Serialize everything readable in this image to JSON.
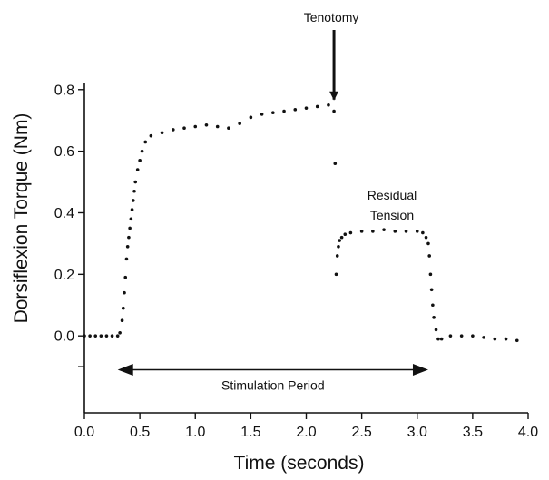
{
  "chart_data": {
    "type": "scatter",
    "title": "",
    "xlabel": "Time (seconds)",
    "ylabel": "Dorsiflexion Torque (Nm)",
    "xlim": [
      0,
      4.0
    ],
    "ylim": [
      -0.25,
      0.82
    ],
    "xticks": [
      "0.0",
      "0.5",
      "1.0",
      "1.5",
      "2.0",
      "2.5",
      "3.0",
      "3.5",
      "4.0"
    ],
    "yticks": [
      "0.0",
      "0.2",
      "0.4",
      "0.6",
      "0.8"
    ],
    "grid": false,
    "legend": "none",
    "series": [
      {
        "points": [
          [
            0.0,
            0.0
          ],
          [
            0.05,
            0.0
          ],
          [
            0.1,
            0.0
          ],
          [
            0.15,
            0.0
          ],
          [
            0.2,
            0.0
          ],
          [
            0.25,
            0.0
          ],
          [
            0.3,
            0.0
          ],
          [
            0.32,
            0.01
          ],
          [
            0.34,
            0.05
          ],
          [
            0.35,
            0.09
          ],
          [
            0.36,
            0.14
          ],
          [
            0.37,
            0.19
          ],
          [
            0.38,
            0.25
          ],
          [
            0.39,
            0.29
          ],
          [
            0.4,
            0.32
          ],
          [
            0.41,
            0.35
          ],
          [
            0.42,
            0.38
          ],
          [
            0.43,
            0.41
          ],
          [
            0.44,
            0.44
          ],
          [
            0.45,
            0.47
          ],
          [
            0.46,
            0.5
          ],
          [
            0.48,
            0.54
          ],
          [
            0.5,
            0.57
          ],
          [
            0.52,
            0.6
          ],
          [
            0.55,
            0.63
          ],
          [
            0.6,
            0.65
          ],
          [
            0.7,
            0.66
          ],
          [
            0.8,
            0.67
          ],
          [
            0.9,
            0.675
          ],
          [
            1.0,
            0.68
          ],
          [
            1.1,
            0.685
          ],
          [
            1.2,
            0.68
          ],
          [
            1.3,
            0.675
          ],
          [
            1.4,
            0.69
          ],
          [
            1.5,
            0.71
          ],
          [
            1.6,
            0.72
          ],
          [
            1.7,
            0.725
          ],
          [
            1.8,
            0.73
          ],
          [
            1.9,
            0.735
          ],
          [
            2.0,
            0.74
          ],
          [
            2.1,
            0.745
          ],
          [
            2.2,
            0.75
          ],
          [
            2.25,
            0.73
          ],
          [
            2.26,
            0.56
          ],
          [
            2.27,
            0.2
          ],
          [
            2.28,
            0.26
          ],
          [
            2.29,
            0.29
          ],
          [
            2.3,
            0.31
          ],
          [
            2.32,
            0.32
          ],
          [
            2.35,
            0.33
          ],
          [
            2.4,
            0.335
          ],
          [
            2.5,
            0.34
          ],
          [
            2.6,
            0.34
          ],
          [
            2.7,
            0.345
          ],
          [
            2.8,
            0.34
          ],
          [
            2.9,
            0.34
          ],
          [
            3.0,
            0.34
          ],
          [
            3.05,
            0.335
          ],
          [
            3.08,
            0.32
          ],
          [
            3.1,
            0.3
          ],
          [
            3.11,
            0.26
          ],
          [
            3.12,
            0.2
          ],
          [
            3.13,
            0.15
          ],
          [
            3.14,
            0.1
          ],
          [
            3.15,
            0.06
          ],
          [
            3.17,
            0.02
          ],
          [
            3.19,
            -0.01
          ],
          [
            3.22,
            -0.01
          ],
          [
            3.3,
            0.0
          ],
          [
            3.4,
            0.0
          ],
          [
            3.5,
            0.0
          ],
          [
            3.6,
            -0.005
          ],
          [
            3.7,
            -0.01
          ],
          [
            3.8,
            -0.01
          ],
          [
            3.9,
            -0.015
          ]
        ]
      }
    ],
    "annotations": {
      "tenotomy": {
        "text": "Tenotomy",
        "x": 2.25,
        "y": 0.75
      },
      "residual": {
        "line1": "Residual",
        "line2": "Tension"
      },
      "stimulation": {
        "text": "Stimulation Period",
        "x_start": 0.3,
        "x_end": 3.1,
        "y": -0.11
      }
    }
  }
}
